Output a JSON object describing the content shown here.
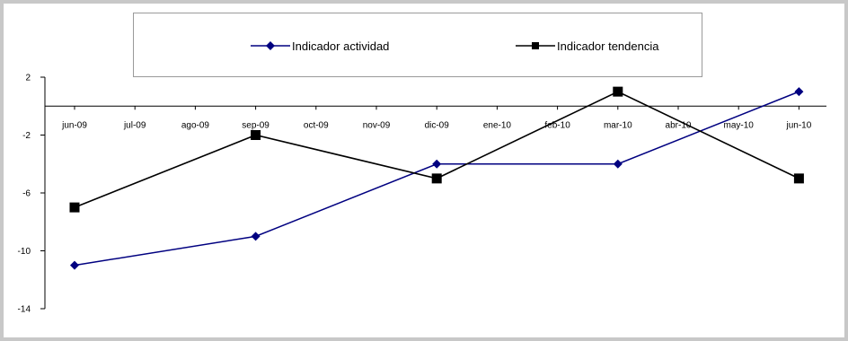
{
  "chart_data": {
    "type": "line",
    "categories": [
      "jun-09",
      "jul-09",
      "ago-09",
      "sep-09",
      "oct-09",
      "nov-09",
      "dic-09",
      "ene-10",
      "feb-10",
      "mar-10",
      "abr-10",
      "may-10",
      "jun-10"
    ],
    "series": [
      {
        "name": "Indicador actividad",
        "color": "#000080",
        "marker": "diamond",
        "points": [
          {
            "category": "jun-09",
            "value": -11
          },
          {
            "category": "sep-09",
            "value": -9
          },
          {
            "category": "dic-09",
            "value": -4
          },
          {
            "category": "mar-10",
            "value": -4
          },
          {
            "category": "jun-10",
            "value": 1
          }
        ]
      },
      {
        "name": "Indicador tendencia",
        "color": "#000000",
        "marker": "square",
        "points": [
          {
            "category": "jun-09",
            "value": -7
          },
          {
            "category": "sep-09",
            "value": -2
          },
          {
            "category": "dic-09",
            "value": -5
          },
          {
            "category": "mar-10",
            "value": 1
          },
          {
            "category": "jun-10",
            "value": -5
          }
        ]
      }
    ],
    "yticks": [
      2,
      -2,
      -6,
      -10,
      -14
    ],
    "ylim": [
      -14,
      2
    ],
    "title": "",
    "xlabel": "",
    "ylabel": "",
    "legend_position": "top",
    "grid": false
  }
}
